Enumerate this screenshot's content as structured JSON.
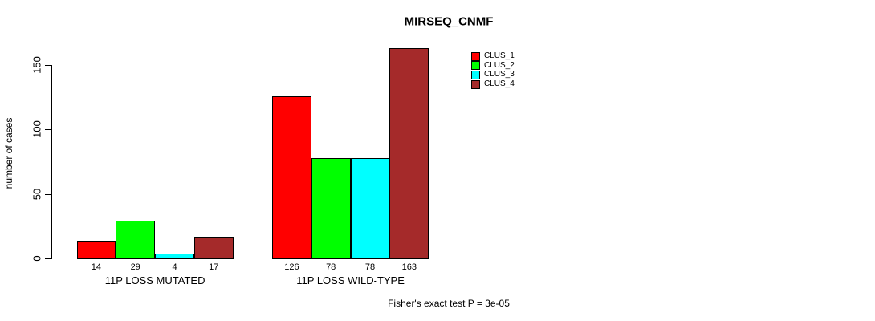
{
  "chart_data": {
    "type": "bar",
    "title": "MIRSEQ_CNMF",
    "ylabel": "number of cases",
    "xlabel": "",
    "yticks": [
      0,
      50,
      100,
      150
    ],
    "ylim": [
      0,
      170
    ],
    "grid": false,
    "legend_position": "top-right-inside",
    "categories": [
      "11P LOSS MUTATED",
      "11P LOSS WILD-TYPE"
    ],
    "series": [
      {
        "name": "CLUS_1",
        "color": "#FF0000",
        "values": [
          14,
          126
        ]
      },
      {
        "name": "CLUS_2",
        "color": "#00FF00",
        "values": [
          29,
          78
        ]
      },
      {
        "name": "CLUS_3",
        "color": "#00FFFF",
        "values": [
          4,
          78
        ]
      },
      {
        "name": "CLUS_4",
        "color": "#A52A2A",
        "values": [
          17,
          163
        ]
      }
    ],
    "bar_value_labels": [
      [
        14,
        29,
        4,
        17
      ],
      [
        126,
        78,
        78,
        163
      ]
    ],
    "annotation": "Fisher's exact test P = 3e-05"
  }
}
